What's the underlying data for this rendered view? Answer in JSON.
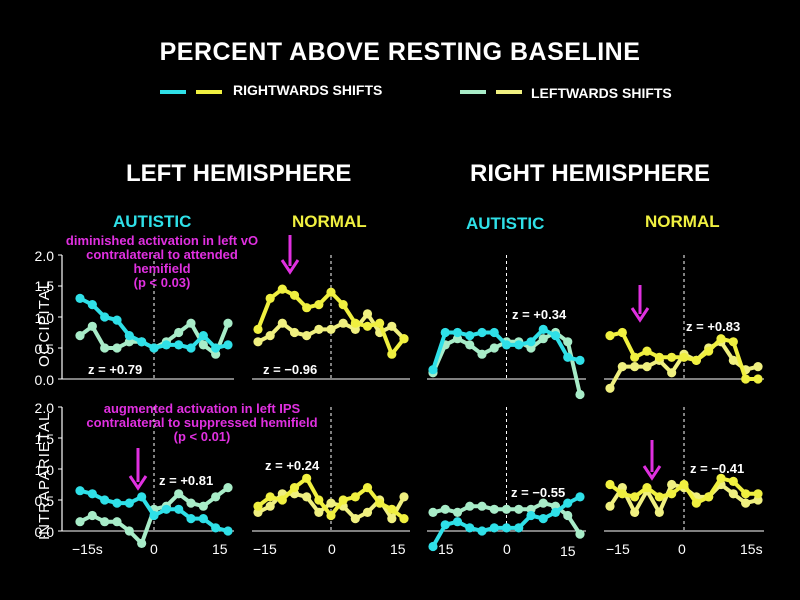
{
  "chart_data": {
    "type": "line",
    "title": "PERCENT ABOVE RESTING BASELINE",
    "legend": [
      {
        "label": "RIGHTWARDS SHIFTS",
        "colors": [
          "#2fe0e8",
          "#f0f040"
        ]
      },
      {
        "label": "LEFTWARDS SHIFTS",
        "colors": [
          "#a8ecc8",
          "#f0f080"
        ]
      }
    ],
    "hemispheres": [
      "LEFT HEMISPHERE",
      "RIGHT HEMISPHERE"
    ],
    "groups": [
      "AUTISTIC",
      "NORMAL",
      "AUTISTIC",
      "NORMAL"
    ],
    "rows": [
      "OCCIPITAL",
      "INTRAPARIETAL"
    ],
    "yticks": [
      "2.0",
      "1.5",
      "1.0",
      "0.5",
      "0.0"
    ],
    "ylim": [
      0,
      2
    ],
    "x": [
      -15,
      -12.5,
      -10,
      -7.5,
      -5,
      -2.5,
      0,
      2.5,
      5,
      7.5,
      10,
      12.5,
      15
    ],
    "xticks": [
      {
        "label": "−15s",
        "value": -15
      },
      {
        "label": "0",
        "value": 0
      },
      {
        "label": "15",
        "value": 15
      }
    ],
    "xtick_sets": [
      [
        "−15s",
        "0",
        "15"
      ],
      [
        "−15",
        "0",
        "15"
      ],
      [
        "15",
        "0",
        "15"
      ],
      [
        "−15",
        "0",
        "15s"
      ]
    ],
    "panels": [
      {
        "row": 0,
        "col": 0,
        "z": "z = +0.79",
        "series": [
          {
            "name": "RIGHTWARDS SHIFTS",
            "color": "#2fe0e8",
            "values": [
              1.3,
              1.2,
              1.0,
              0.95,
              0.7,
              0.6,
              0.5,
              0.55,
              0.55,
              0.5,
              0.7,
              0.5,
              0.55
            ]
          },
          {
            "name": "LEFTWARDS SHIFTS",
            "color": "#a8ecc8",
            "values": [
              0.7,
              0.85,
              0.5,
              0.5,
              0.6,
              0.6,
              0.5,
              0.6,
              0.75,
              0.9,
              0.55,
              0.4,
              0.9
            ]
          }
        ]
      },
      {
        "row": 0,
        "col": 1,
        "z": "z = −0.96",
        "series": [
          {
            "name": "RIGHTWARDS SHIFTS",
            "color": "#f0f040",
            "values": [
              0.8,
              1.3,
              1.45,
              1.35,
              1.15,
              1.2,
              1.4,
              1.2,
              0.9,
              0.85,
              0.9,
              0.4,
              0.65
            ]
          },
          {
            "name": "LEFTWARDS SHIFTS",
            "color": "#f0f080",
            "values": [
              0.6,
              0.7,
              0.9,
              0.75,
              0.7,
              0.8,
              0.8,
              0.9,
              0.8,
              1.05,
              0.75,
              0.85,
              0.65
            ]
          }
        ]
      },
      {
        "row": 0,
        "col": 2,
        "z": "z = +0.34",
        "series": [
          {
            "name": "RIGHTWARDS SHIFTS",
            "color": "#2fe0e8",
            "values": [
              0.15,
              0.75,
              0.75,
              0.7,
              0.75,
              0.75,
              0.55,
              0.55,
              0.6,
              0.8,
              0.7,
              0.35,
              0.3
            ]
          },
          {
            "name": "LEFTWARDS SHIFTS",
            "color": "#a8ecc8",
            "values": [
              0.1,
              0.55,
              0.65,
              0.55,
              0.4,
              0.5,
              0.6,
              0.6,
              0.5,
              0.65,
              0.75,
              0.6,
              -0.25
            ]
          }
        ]
      },
      {
        "row": 0,
        "col": 3,
        "z": "z = +0.83",
        "series": [
          {
            "name": "RIGHTWARDS SHIFTS",
            "color": "#f0f040",
            "values": [
              0.7,
              0.75,
              0.35,
              0.45,
              0.35,
              0.35,
              0.35,
              0.3,
              0.45,
              0.65,
              0.6,
              0.0,
              0.0
            ]
          },
          {
            "name": "LEFTWARDS SHIFTS",
            "color": "#f0f080",
            "values": [
              -0.15,
              0.2,
              0.2,
              0.2,
              0.3,
              0.1,
              0.4,
              0.3,
              0.5,
              0.6,
              0.3,
              0.15,
              0.2
            ]
          }
        ]
      },
      {
        "row": 1,
        "col": 0,
        "z": "z = +0.81",
        "series": [
          {
            "name": "RIGHTWARDS SHIFTS",
            "color": "#2fe0e8",
            "values": [
              0.65,
              0.6,
              0.5,
              0.45,
              0.45,
              0.55,
              0.25,
              0.35,
              0.35,
              0.2,
              0.2,
              0.05,
              0.0
            ]
          },
          {
            "name": "LEFTWARDS SHIFTS",
            "color": "#a8ecc8",
            "values": [
              0.15,
              0.25,
              0.15,
              0.15,
              0.0,
              -0.2,
              0.35,
              0.4,
              0.6,
              0.45,
              0.4,
              0.55,
              0.7
            ]
          }
        ]
      },
      {
        "row": 1,
        "col": 1,
        "z": "z = +0.24",
        "series": [
          {
            "name": "RIGHTWARDS SHIFTS",
            "color": "#f0f040",
            "values": [
              0.4,
              0.55,
              0.5,
              0.7,
              0.85,
              0.5,
              0.25,
              0.5,
              0.55,
              0.7,
              0.45,
              0.35,
              0.2
            ]
          },
          {
            "name": "LEFTWARDS SHIFTS",
            "color": "#f0f080",
            "values": [
              0.3,
              0.4,
              0.6,
              0.6,
              0.55,
              0.3,
              0.45,
              0.4,
              0.2,
              0.3,
              0.5,
              0.2,
              0.55
            ]
          }
        ]
      },
      {
        "row": 1,
        "col": 2,
        "z": "z = −0.55",
        "series": [
          {
            "name": "RIGHTWARDS SHIFTS",
            "color": "#2fe0e8",
            "values": [
              -0.25,
              0.1,
              0.15,
              0.05,
              0.0,
              0.05,
              0.05,
              0.05,
              0.25,
              0.2,
              0.3,
              0.45,
              0.55
            ]
          },
          {
            "name": "LEFTWARDS SHIFTS",
            "color": "#a8ecc8",
            "values": [
              0.3,
              0.35,
              0.3,
              0.4,
              0.4,
              0.35,
              0.35,
              0.35,
              0.35,
              0.45,
              0.4,
              0.25,
              -0.05
            ]
          }
        ]
      },
      {
        "row": 1,
        "col": 3,
        "z": "z = −0.41",
        "series": [
          {
            "name": "RIGHTWARDS SHIFTS",
            "color": "#f0f040",
            "values": [
              0.75,
              0.6,
              0.55,
              0.7,
              0.55,
              0.6,
              0.75,
              0.45,
              0.55,
              0.85,
              0.8,
              0.6,
              0.6
            ]
          },
          {
            "name": "LEFTWARDS SHIFTS",
            "color": "#f0f080",
            "values": [
              0.4,
              0.7,
              0.3,
              0.65,
              0.3,
              0.75,
              0.7,
              0.55,
              0.55,
              0.75,
              0.6,
              0.45,
              0.5
            ]
          }
        ]
      }
    ],
    "annotations": [
      {
        "text": "diminished activation in left vO\ncontralateral to attended\nhemifield\n(p < 0.03)"
      },
      {
        "text": "augmented activation in left IPS\ncontralateral to suppressed hemifield\n(p < 0.01)"
      }
    ]
  }
}
